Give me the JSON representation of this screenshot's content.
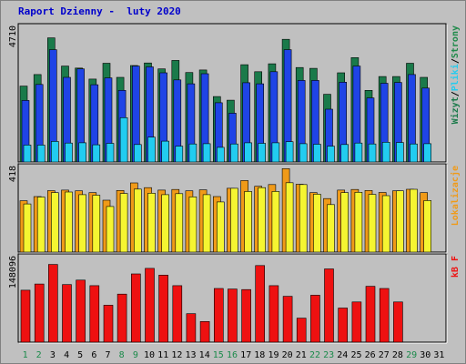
{
  "title": "Raport Dzienny -  luty 2020",
  "colors": {
    "visits": "#1a7a4a",
    "hits": "#1f44e6",
    "files": "#22ccf0",
    "sites": "#f09a18",
    "pages": "#f5f531",
    "kb": "#ee1111",
    "day_weekday": "#000000",
    "day_weekend": "#1a8a4a"
  },
  "chart_data": [
    {
      "type": "bar",
      "name": "top",
      "ymax_label": "4710",
      "ymax": 4710,
      "legend": [
        {
          "label": "Wizyt",
          "color": "#1a7a4a"
        },
        {
          "label": "Pliki",
          "color": "#22ccf0"
        },
        {
          "label": "Strony",
          "color": "#1f8a4a"
        }
      ],
      "legend_sep": "/",
      "categories": [
        "1",
        "2",
        "3",
        "4",
        "5",
        "6",
        "7",
        "8",
        "9",
        "10",
        "11",
        "12",
        "13",
        "14",
        "15",
        "16",
        "17",
        "18",
        "19",
        "20",
        "21",
        "22",
        "23",
        "24",
        "25",
        "26",
        "27",
        "28",
        "29",
        "30",
        "31"
      ],
      "series": [
        {
          "values": [
            2690,
            3100,
            4400,
            3400,
            3330,
            2940,
            3500,
            3000,
            3420,
            3510,
            3300,
            3600,
            3170,
            3260,
            2320,
            2190,
            3450,
            3200,
            3480,
            4350,
            3350,
            3320,
            2400,
            3160,
            3700,
            2540,
            3030,
            3030,
            3500,
            3000,
            0
          ]
        },
        {
          "values": [
            2180,
            2750,
            3980,
            3000,
            3300,
            2740,
            2980,
            2540,
            3400,
            3370,
            3160,
            2910,
            2770,
            3130,
            2100,
            1730,
            2810,
            2770,
            3200,
            3980,
            2890,
            2890,
            1870,
            2830,
            3400,
            2270,
            2790,
            2820,
            3100,
            2620,
            0
          ]
        },
        {
          "values": [
            600,
            600,
            730,
            670,
            680,
            610,
            660,
            1570,
            620,
            880,
            740,
            560,
            640,
            650,
            520,
            640,
            680,
            660,
            680,
            720,
            650,
            630,
            560,
            620,
            670,
            640,
            700,
            690,
            640,
            650,
            0
          ]
        }
      ]
    },
    {
      "type": "bar",
      "name": "middle",
      "ymax_label": "418",
      "ymax": 418,
      "legend": [
        {
          "label": "Lokalizacje",
          "color": "#f09a18"
        }
      ],
      "categories": [
        "1",
        "2",
        "3",
        "4",
        "5",
        "6",
        "7",
        "8",
        "9",
        "10",
        "11",
        "12",
        "13",
        "14",
        "15",
        "16",
        "17",
        "18",
        "19",
        "20",
        "21",
        "22",
        "23",
        "24",
        "25",
        "26",
        "27",
        "28",
        "29",
        "30",
        "31"
      ],
      "series": [
        {
          "values": [
            259,
            280,
            310,
            313,
            309,
            300,
            262,
            311,
            349,
            325,
            313,
            316,
            309,
            314,
            280,
            322,
            361,
            332,
            341,
            421,
            342,
            300,
            270,
            313,
            316,
            311,
            301,
            309,
            317,
            300,
            0
          ]
        },
        {
          "values": [
            243,
            278,
            300,
            303,
            290,
            287,
            230,
            296,
            318,
            297,
            290,
            295,
            279,
            290,
            253,
            322,
            306,
            325,
            306,
            350,
            341,
            292,
            240,
            300,
            302,
            291,
            285,
            309,
            317,
            260,
            0
          ]
        }
      ]
    },
    {
      "type": "bar",
      "name": "bottom",
      "ymax_label": "148096",
      "ymax": 148096,
      "legend": [
        {
          "label": "kB F",
          "color": "#ee1111"
        }
      ],
      "categories": [
        "1",
        "2",
        "3",
        "4",
        "5",
        "6",
        "7",
        "8",
        "9",
        "10",
        "11",
        "12",
        "13",
        "14",
        "15",
        "16",
        "17",
        "18",
        "19",
        "20",
        "21",
        "22",
        "23",
        "24",
        "25",
        "26",
        "27",
        "28",
        "29",
        "30",
        "31"
      ],
      "series": [
        {
          "values": [
            93000,
            104000,
            139000,
            103000,
            111000,
            101000,
            66000,
            86000,
            122000,
            132000,
            120000,
            101000,
            51000,
            37000,
            96000,
            95000,
            94000,
            137000,
            101000,
            82000,
            43000,
            84000,
            131000,
            61000,
            72000,
            100000,
            96000,
            72000,
            0,
            0,
            0
          ]
        }
      ]
    }
  ],
  "days": [
    "1",
    "2",
    "3",
    "4",
    "5",
    "6",
    "7",
    "8",
    "9",
    "10",
    "11",
    "12",
    "13",
    "14",
    "15",
    "16",
    "17",
    "18",
    "19",
    "20",
    "21",
    "22",
    "23",
    "24",
    "25",
    "26",
    "27",
    "28",
    "29",
    "30",
    "31"
  ],
  "weekend_days": [
    "1",
    "2",
    "8",
    "9",
    "15",
    "16",
    "22",
    "23",
    "29"
  ]
}
